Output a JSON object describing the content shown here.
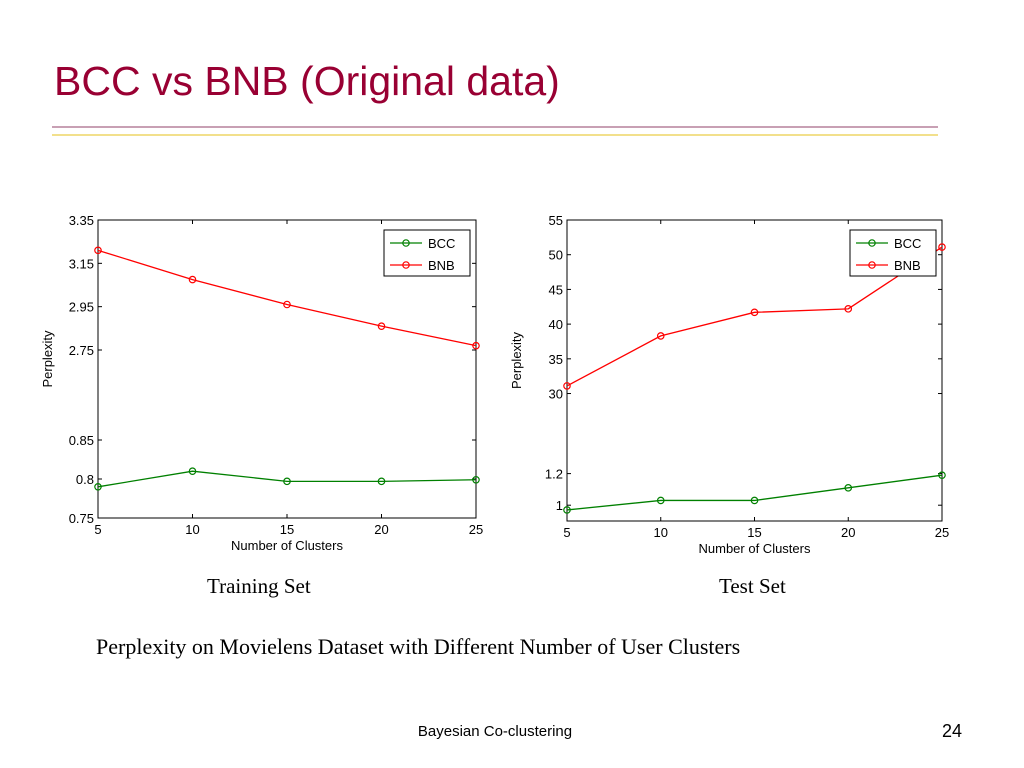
{
  "slide": {
    "title": "BCC vs BNB (Original data)",
    "caption": "Perplexity on Movielens Dataset with Different Number of User Clusters",
    "footer": "Bayesian Co-clustering",
    "page_number": "24"
  },
  "colors": {
    "title": "#990033",
    "bcc": "#008000",
    "bnb": "#ff0000"
  },
  "chart_data": [
    {
      "type": "line",
      "title": "Training Set",
      "xlabel": "Number of Clusters",
      "ylabel": "Perplexity",
      "x": [
        5,
        10,
        15,
        20,
        25
      ],
      "xlim": [
        5,
        25
      ],
      "x_ticks": [
        "5",
        "10",
        "15",
        "20",
        "25"
      ],
      "y_ticks": [
        "0.75",
        "0.8",
        "0.85",
        "2.75",
        "2.95",
        "3.15",
        "3.35"
      ],
      "broken_axis": true,
      "y_segments": [
        {
          "range": [
            0.75,
            0.85
          ]
        },
        {
          "range": [
            2.75,
            3.35
          ]
        }
      ],
      "legend_position": "top-right",
      "grid": false,
      "series": [
        {
          "name": "BCC",
          "color": "#008000",
          "values": [
            0.79,
            0.81,
            0.797,
            0.797,
            0.799
          ]
        },
        {
          "name": "BNB",
          "color": "#ff0000",
          "values": [
            3.21,
            3.075,
            2.96,
            2.86,
            2.77
          ]
        }
      ]
    },
    {
      "type": "line",
      "title": "Test Set",
      "xlabel": "Number of Clusters",
      "ylabel": "Perplexity",
      "x": [
        5,
        10,
        15,
        20,
        25
      ],
      "xlim": [
        5,
        25
      ],
      "x_ticks": [
        "5",
        "10",
        "15",
        "20",
        "25"
      ],
      "y_ticks": [
        "1",
        "1.2",
        "30",
        "35",
        "40",
        "45",
        "50",
        "55"
      ],
      "broken_axis": true,
      "y_segments": [
        {
          "range": [
            0.9,
            1.4
          ]
        },
        {
          "range": [
            29.5,
            55
          ]
        }
      ],
      "legend_position": "top-right",
      "grid": false,
      "series": [
        {
          "name": "BCC",
          "color": "#008000",
          "values": [
            0.97,
            1.03,
            1.03,
            1.11,
            1.19
          ]
        },
        {
          "name": "BNB",
          "color": "#ff0000",
          "values": [
            31.1,
            38.3,
            41.7,
            42.2,
            51.1
          ]
        }
      ]
    }
  ]
}
